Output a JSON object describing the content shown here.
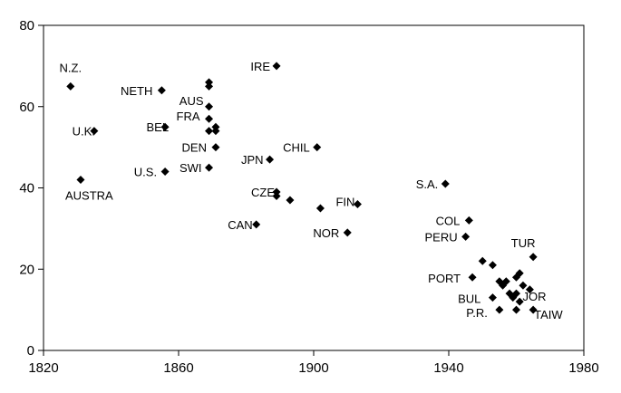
{
  "chart_data": {
    "type": "scatter",
    "title": "",
    "xlabel": "",
    "ylabel": "",
    "xlim": [
      1820,
      1980
    ],
    "ylim": [
      0,
      80
    ],
    "x_ticks": [
      1820,
      1860,
      1900,
      1940,
      1980
    ],
    "y_ticks": [
      0,
      20,
      40,
      60,
      80
    ],
    "grid": false,
    "marker": "diamond",
    "color": "#000000",
    "points": [
      {
        "x": 1828,
        "y": 65,
        "label": "N.Z."
      },
      {
        "x": 1835,
        "y": 54,
        "label": "U.K."
      },
      {
        "x": 1831,
        "y": 42,
        "label": "AUSTRA"
      },
      {
        "x": 1855,
        "y": 64,
        "label": "NETH"
      },
      {
        "x": 1856,
        "y": 55,
        "label": "BEL"
      },
      {
        "x": 1856,
        "y": 44,
        "label": "U.S."
      },
      {
        "x": 1869,
        "y": 66,
        "label": ""
      },
      {
        "x": 1869,
        "y": 65,
        "label": ""
      },
      {
        "x": 1869,
        "y": 60,
        "label": "AUS"
      },
      {
        "x": 1869,
        "y": 57,
        "label": "FRA"
      },
      {
        "x": 1869,
        "y": 54,
        "label": ""
      },
      {
        "x": 1871,
        "y": 55,
        "label": ""
      },
      {
        "x": 1871,
        "y": 54,
        "label": ""
      },
      {
        "x": 1871,
        "y": 50,
        "label": "DEN"
      },
      {
        "x": 1869,
        "y": 45,
        "label": "SWI"
      },
      {
        "x": 1889,
        "y": 70,
        "label": "IRE"
      },
      {
        "x": 1901,
        "y": 50,
        "label": "CHIL"
      },
      {
        "x": 1887,
        "y": 47,
        "label": "JPN"
      },
      {
        "x": 1889,
        "y": 39,
        "label": "CZE"
      },
      {
        "x": 1889,
        "y": 38,
        "label": ""
      },
      {
        "x": 1893,
        "y": 37,
        "label": ""
      },
      {
        "x": 1883,
        "y": 31,
        "label": "CAN"
      },
      {
        "x": 1902,
        "y": 35,
        "label": ""
      },
      {
        "x": 1913,
        "y": 36,
        "label": "FIN"
      },
      {
        "x": 1910,
        "y": 29,
        "label": "NOR"
      },
      {
        "x": 1939,
        "y": 41,
        "label": "S.A."
      },
      {
        "x": 1946,
        "y": 32,
        "label": "COL"
      },
      {
        "x": 1945,
        "y": 28,
        "label": "PERU"
      },
      {
        "x": 1965,
        "y": 23,
        "label": "TUR"
      },
      {
        "x": 1950,
        "y": 22,
        "label": ""
      },
      {
        "x": 1953,
        "y": 21,
        "label": ""
      },
      {
        "x": 1947,
        "y": 18,
        "label": "PORT"
      },
      {
        "x": 1961,
        "y": 19,
        "label": ""
      },
      {
        "x": 1960,
        "y": 18,
        "label": ""
      },
      {
        "x": 1955,
        "y": 17,
        "label": ""
      },
      {
        "x": 1957,
        "y": 17,
        "label": ""
      },
      {
        "x": 1956,
        "y": 16,
        "label": ""
      },
      {
        "x": 1962,
        "y": 16,
        "label": ""
      },
      {
        "x": 1964,
        "y": 15,
        "label": ""
      },
      {
        "x": 1958,
        "y": 14,
        "label": ""
      },
      {
        "x": 1959,
        "y": 13,
        "label": ""
      },
      {
        "x": 1953,
        "y": 13,
        "label": "BUL"
      },
      {
        "x": 1960,
        "y": 14,
        "label": "JOR"
      },
      {
        "x": 1961,
        "y": 12,
        "label": ""
      },
      {
        "x": 1955,
        "y": 10,
        "label": "P.R."
      },
      {
        "x": 1960,
        "y": 10,
        "label": ""
      },
      {
        "x": 1965,
        "y": 10,
        "label": "TAIW"
      }
    ]
  }
}
